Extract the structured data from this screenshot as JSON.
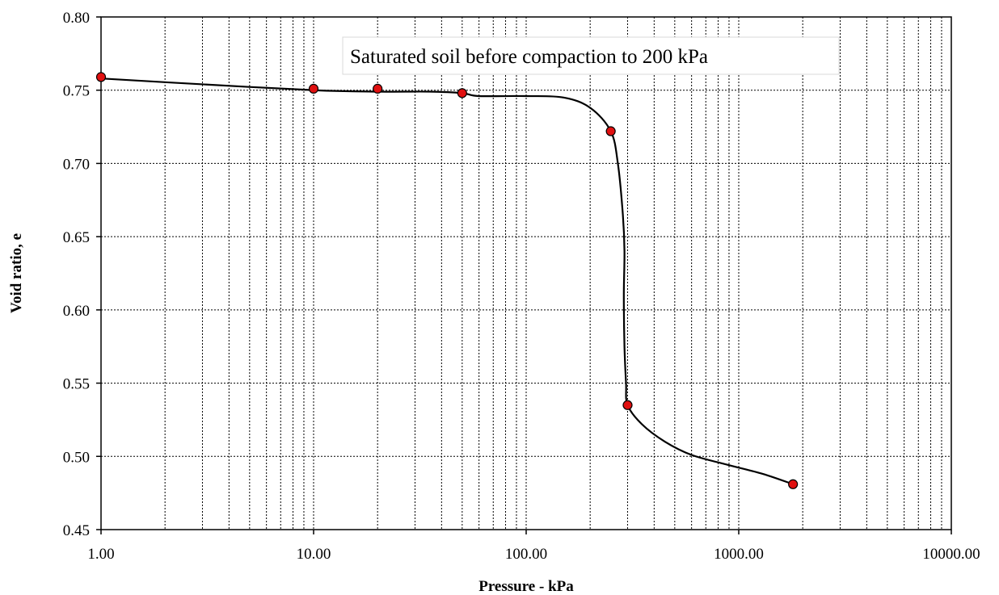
{
  "chart_data": {
    "type": "line",
    "title": "",
    "xlabel": "Pressure - kPa",
    "ylabel": "Void ratio, e",
    "x_scale": "log",
    "xlim": [
      1,
      10000
    ],
    "ylim": [
      0.45,
      0.8
    ],
    "x_tick_labels": [
      "1.00",
      "10.00",
      "100.00",
      "1000.00",
      "10000.00"
    ],
    "y_tick_labels": [
      "0.45",
      "0.50",
      "0.55",
      "0.60",
      "0.65",
      "0.70",
      "0.75",
      "0.80"
    ],
    "grid": true,
    "legend": "none",
    "annotation": "Saturated soil before compaction to 200 kPa",
    "series": [
      {
        "points": [
          {
            "x": 1,
            "y": 0.759
          },
          {
            "x": 10,
            "y": 0.751
          },
          {
            "x": 20,
            "y": 0.751
          },
          {
            "x": 50,
            "y": 0.748
          },
          {
            "x": 250,
            "y": 0.722
          },
          {
            "x": 300,
            "y": 0.535
          },
          {
            "x": 1800,
            "y": 0.481
          }
        ],
        "curve": [
          [
            1,
            0.758
          ],
          [
            3,
            0.754
          ],
          [
            10,
            0.75
          ],
          [
            20,
            0.749
          ],
          [
            35,
            0.749
          ],
          [
            50,
            0.748
          ],
          [
            60,
            0.746
          ],
          [
            100,
            0.746
          ],
          [
            150,
            0.745
          ],
          [
            200,
            0.738
          ],
          [
            250,
            0.722
          ],
          [
            270,
            0.7
          ],
          [
            285,
            0.665
          ],
          [
            290,
            0.64
          ],
          [
            288,
            0.61
          ],
          [
            290,
            0.575
          ],
          [
            295,
            0.55
          ],
          [
            300,
            0.535
          ],
          [
            350,
            0.522
          ],
          [
            450,
            0.51
          ],
          [
            600,
            0.501
          ],
          [
            900,
            0.494
          ],
          [
            1300,
            0.488
          ],
          [
            1800,
            0.481
          ]
        ],
        "line_color": "#000000",
        "marker_color": "#e01010"
      }
    ]
  }
}
